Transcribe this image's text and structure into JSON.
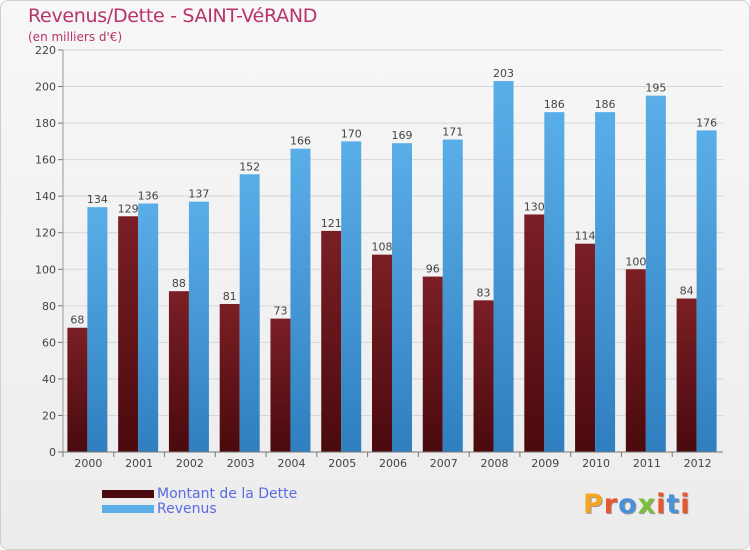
{
  "header": {
    "title": "Revenus/Dette - SAINT-VéRAND",
    "subtitle": "(en milliers d'€)"
  },
  "legend": {
    "debt_label": "Montant de la Dette",
    "revenue_label": "Revenus"
  },
  "logo": {
    "text": "Proxiti",
    "colors": [
      "#f5a623",
      "#e8562a",
      "#4a90d9",
      "#7bbf3a",
      "#e8562a",
      "#4a90d9",
      "#e8562a"
    ]
  },
  "colors": {
    "debt": "#7a1f25",
    "debt_dark": "#4a0a0e",
    "revenue": "#5aaee8",
    "revenue_dark": "#2f7fc0",
    "text": "#444444"
  },
  "chart_data": {
    "type": "bar",
    "categories": [
      "2000",
      "2001",
      "2002",
      "2003",
      "2004",
      "2005",
      "2006",
      "2007",
      "2008",
      "2009",
      "2010",
      "2011",
      "2012"
    ],
    "series": [
      {
        "name": "Montant de la Dette",
        "values": [
          68,
          129,
          88,
          81,
          73,
          121,
          108,
          96,
          83,
          130,
          114,
          100,
          84
        ]
      },
      {
        "name": "Revenus",
        "values": [
          134,
          136,
          137,
          152,
          166,
          170,
          169,
          171,
          203,
          186,
          186,
          195,
          176
        ]
      }
    ],
    "title": "Revenus/Dette - SAINT-VéRAND",
    "subtitle": "(en milliers d'€)",
    "ylim": [
      0,
      220
    ],
    "yticks": [
      0,
      20,
      40,
      60,
      80,
      100,
      120,
      140,
      160,
      180,
      200,
      220
    ],
    "grid": true,
    "legend_position": "bottom-left"
  }
}
